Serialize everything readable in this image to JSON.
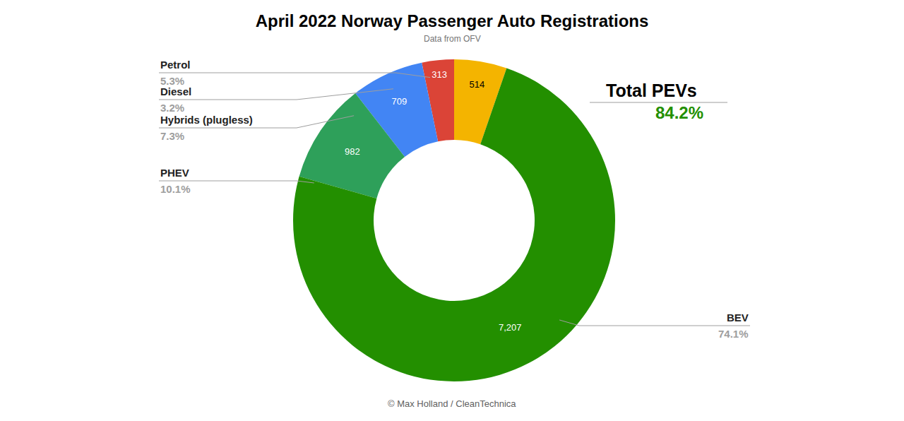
{
  "chart_data": {
    "type": "pie",
    "title": "April 2022 Norway Passenger Auto Registrations",
    "subtitle": "Data from OFV",
    "categories": [
      "Petrol",
      "Diesel",
      "Hybrids (plugless)",
      "PHEV",
      "BEV"
    ],
    "values": [
      514,
      313,
      709,
      982,
      7207
    ],
    "value_labels": [
      "514",
      "313",
      "709",
      "982",
      "7,207"
    ],
    "share_labels": [
      "5.3%",
      "3.2%",
      "7.3%",
      "10.1%",
      "74.1%"
    ],
    "colors": [
      "#f4b400",
      "#db4437",
      "#4285f4",
      "#2ea05a",
      "#238f00"
    ],
    "data_labels": true,
    "total": {
      "label": "Total PEVs",
      "value_label": "84.2%"
    },
    "credit": "© Max Holland / CleanTechnica"
  }
}
